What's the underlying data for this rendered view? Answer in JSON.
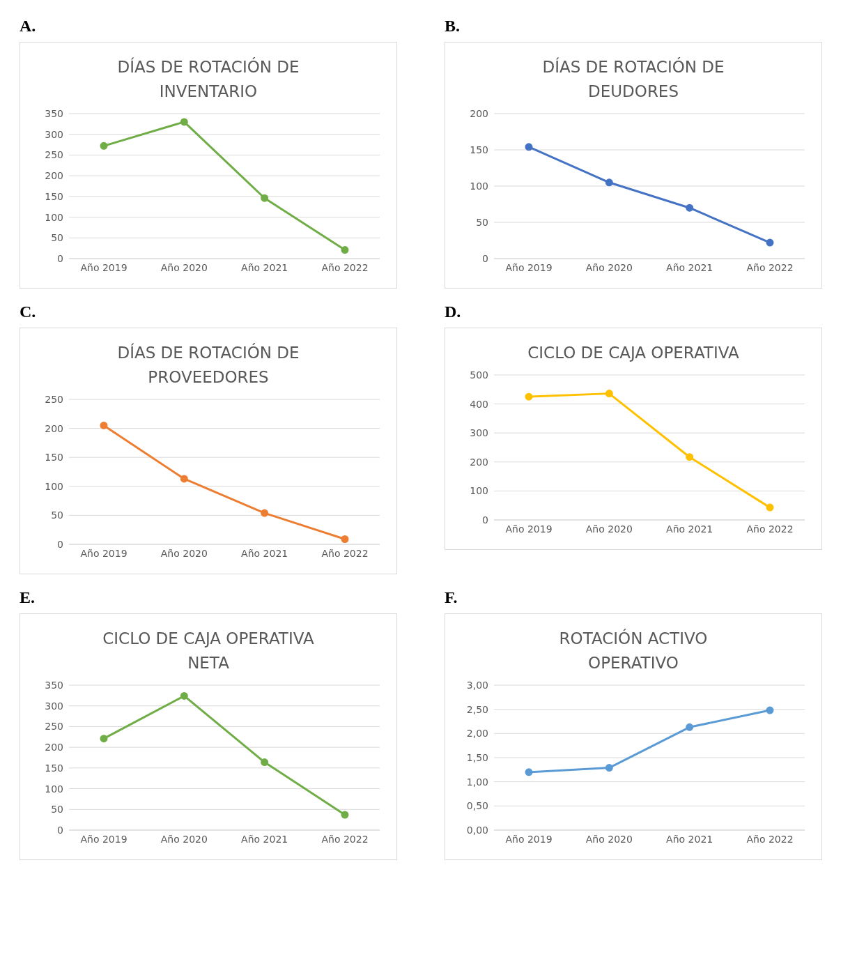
{
  "chart_data": [
    {
      "type": "line",
      "title": "DÍAS DE ROTACIÓN DE INVENTARIO",
      "annotations": [
        "A."
      ],
      "categories": [
        "Año 2019",
        "Año 2020",
        "Año 2021",
        "Año 2022"
      ],
      "series": [
        {
          "color": "#70ad47",
          "values": [
            272,
            330,
            146,
            21
          ]
        }
      ],
      "ylim": [
        0,
        350
      ],
      "yticks": [
        0,
        50,
        100,
        150,
        200,
        250,
        300,
        350
      ],
      "grid": "y",
      "legend": false,
      "marker": "circle",
      "line_style": "solid"
    },
    {
      "type": "line",
      "title": "DÍAS DE ROTACIÓN DE DEUDORES",
      "annotations": [
        "B."
      ],
      "categories": [
        "Año 2019",
        "Año 2020",
        "Año 2021",
        "Año 2022"
      ],
      "series": [
        {
          "color": "#4472c4",
          "values": [
            154,
            105,
            70,
            22
          ]
        }
      ],
      "ylim": [
        0,
        200
      ],
      "yticks": [
        0,
        50,
        100,
        150,
        200
      ],
      "grid": "y",
      "legend": false,
      "marker": "circle",
      "line_style": "solid"
    },
    {
      "type": "line",
      "title": "DÍAS DE ROTACIÓN DE PROVEEDORES",
      "annotations": [
        "C."
      ],
      "categories": [
        "Año 2019",
        "Año 2020",
        "Año 2021",
        "Año 2022"
      ],
      "series": [
        {
          "color": "#ed7d31",
          "values": [
            205,
            113,
            54,
            9
          ]
        }
      ],
      "ylim": [
        0,
        250
      ],
      "yticks": [
        0,
        50,
        100,
        150,
        200,
        250
      ],
      "grid": "y",
      "legend": false,
      "marker": "circle",
      "line_style": "solid"
    },
    {
      "type": "line",
      "title": "CICLO DE CAJA OPERATIVA",
      "annotations": [
        "D."
      ],
      "categories": [
        "Año 2019",
        "Año 2020",
        "Año 2021",
        "Año 2022"
      ],
      "series": [
        {
          "color": "#ffc000",
          "values": [
            425,
            436,
            217,
            43
          ]
        }
      ],
      "ylim": [
        0,
        500
      ],
      "yticks": [
        0,
        100,
        200,
        300,
        400,
        500
      ],
      "grid": "y",
      "legend": false,
      "marker": "circle",
      "line_style": "solid"
    },
    {
      "type": "line",
      "title": "CICLO DE CAJA OPERATIVA NETA",
      "annotations": [
        "E."
      ],
      "categories": [
        "Año 2019",
        "Año 2020",
        "Año 2021",
        "Año 2022"
      ],
      "series": [
        {
          "color": "#70ad47",
          "values": [
            221,
            324,
            164,
            37
          ]
        }
      ],
      "ylim": [
        0,
        350
      ],
      "yticks": [
        0,
        50,
        100,
        150,
        200,
        250,
        300,
        350
      ],
      "grid": "y",
      "legend": false,
      "marker": "circle",
      "line_style": "solid"
    },
    {
      "type": "line",
      "title": "ROTACIÓN ACTIVO OPERATIVO",
      "annotations": [
        "F."
      ],
      "categories": [
        "Año 2019",
        "Año 2020",
        "Año 2021",
        "Año 2022"
      ],
      "series": [
        {
          "color": "#5b9bd5",
          "values": [
            1.2,
            1.29,
            2.13,
            2.48
          ]
        }
      ],
      "ylim": [
        0,
        3
      ],
      "yticks": [
        {
          "value": 0,
          "label": "0,00"
        },
        {
          "value": 0.5,
          "label": "0,50"
        },
        {
          "value": 1,
          "label": "1,00"
        },
        {
          "value": 1.5,
          "label": "1,50"
        },
        {
          "value": 2,
          "label": "2,00"
        },
        {
          "value": 2.5,
          "label": "2,50"
        },
        {
          "value": 3,
          "label": "3,00"
        }
      ],
      "grid": "y",
      "legend": false,
      "marker": "circle",
      "line_style": "solid"
    }
  ]
}
